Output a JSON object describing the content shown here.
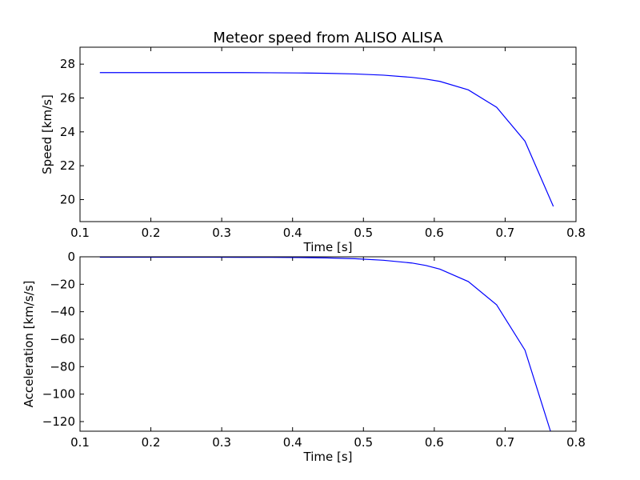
{
  "colors": {
    "series": "#0000ff",
    "axes": "#000000",
    "background": "#ffffff"
  },
  "chart_data": [
    {
      "type": "line",
      "title": "Meteor speed from  ALISO ALISA",
      "xlabel": "Time [s]",
      "ylabel": "Speed [km/s]",
      "xlim": [
        0.1,
        0.8
      ],
      "ylim": [
        18.7,
        29.0
      ],
      "xticks": [
        0.1,
        0.2,
        0.3,
        0.4,
        0.5,
        0.6,
        0.7,
        0.8
      ],
      "xtick_labels": [
        "0.1",
        "0.2",
        "0.3",
        "0.4",
        "0.5",
        "0.6",
        "0.7",
        "0.8"
      ],
      "yticks": [
        20,
        22,
        24,
        26,
        28
      ],
      "ytick_labels": [
        "20",
        "22",
        "24",
        "26",
        "28"
      ],
      "grid": false,
      "series": [
        {
          "x": [
            0.128,
            0.168,
            0.208,
            0.248,
            0.288,
            0.328,
            0.368,
            0.408,
            0.448,
            0.488,
            0.528,
            0.568,
            0.588,
            0.608,
            0.648,
            0.688,
            0.728,
            0.768
          ],
          "y": [
            27.5,
            27.5,
            27.5,
            27.5,
            27.5,
            27.5,
            27.49,
            27.48,
            27.46,
            27.42,
            27.35,
            27.22,
            27.12,
            26.98,
            26.48,
            25.45,
            23.45,
            19.6
          ]
        }
      ]
    },
    {
      "type": "line",
      "title": "",
      "xlabel": "Time [s]",
      "ylabel": "Acceleration [km/s/s]",
      "xlim": [
        0.1,
        0.8
      ],
      "ylim": [
        -127,
        0
      ],
      "xticks": [
        0.1,
        0.2,
        0.3,
        0.4,
        0.5,
        0.6,
        0.7,
        0.8
      ],
      "xtick_labels": [
        "0.1",
        "0.2",
        "0.3",
        "0.4",
        "0.5",
        "0.6",
        "0.7",
        "0.8"
      ],
      "yticks": [
        0,
        -20,
        -40,
        -60,
        -80,
        -100,
        -120
      ],
      "ytick_labels": [
        "0",
        "−20",
        "−40",
        "−60",
        "−80",
        "−100",
        "−120"
      ],
      "grid": false,
      "series": [
        {
          "x": [
            0.128,
            0.168,
            0.208,
            0.248,
            0.288,
            0.328,
            0.368,
            0.408,
            0.448,
            0.488,
            0.528,
            0.568,
            0.588,
            0.608,
            0.648,
            0.688,
            0.728,
            0.764
          ],
          "y": [
            -0.3,
            -0.3,
            -0.3,
            -0.3,
            -0.3,
            -0.35,
            -0.4,
            -0.5,
            -0.8,
            -1.4,
            -2.5,
            -4.5,
            -6.3,
            -9.0,
            -18.0,
            -35.0,
            -68.0,
            -127.0
          ]
        }
      ]
    }
  ]
}
